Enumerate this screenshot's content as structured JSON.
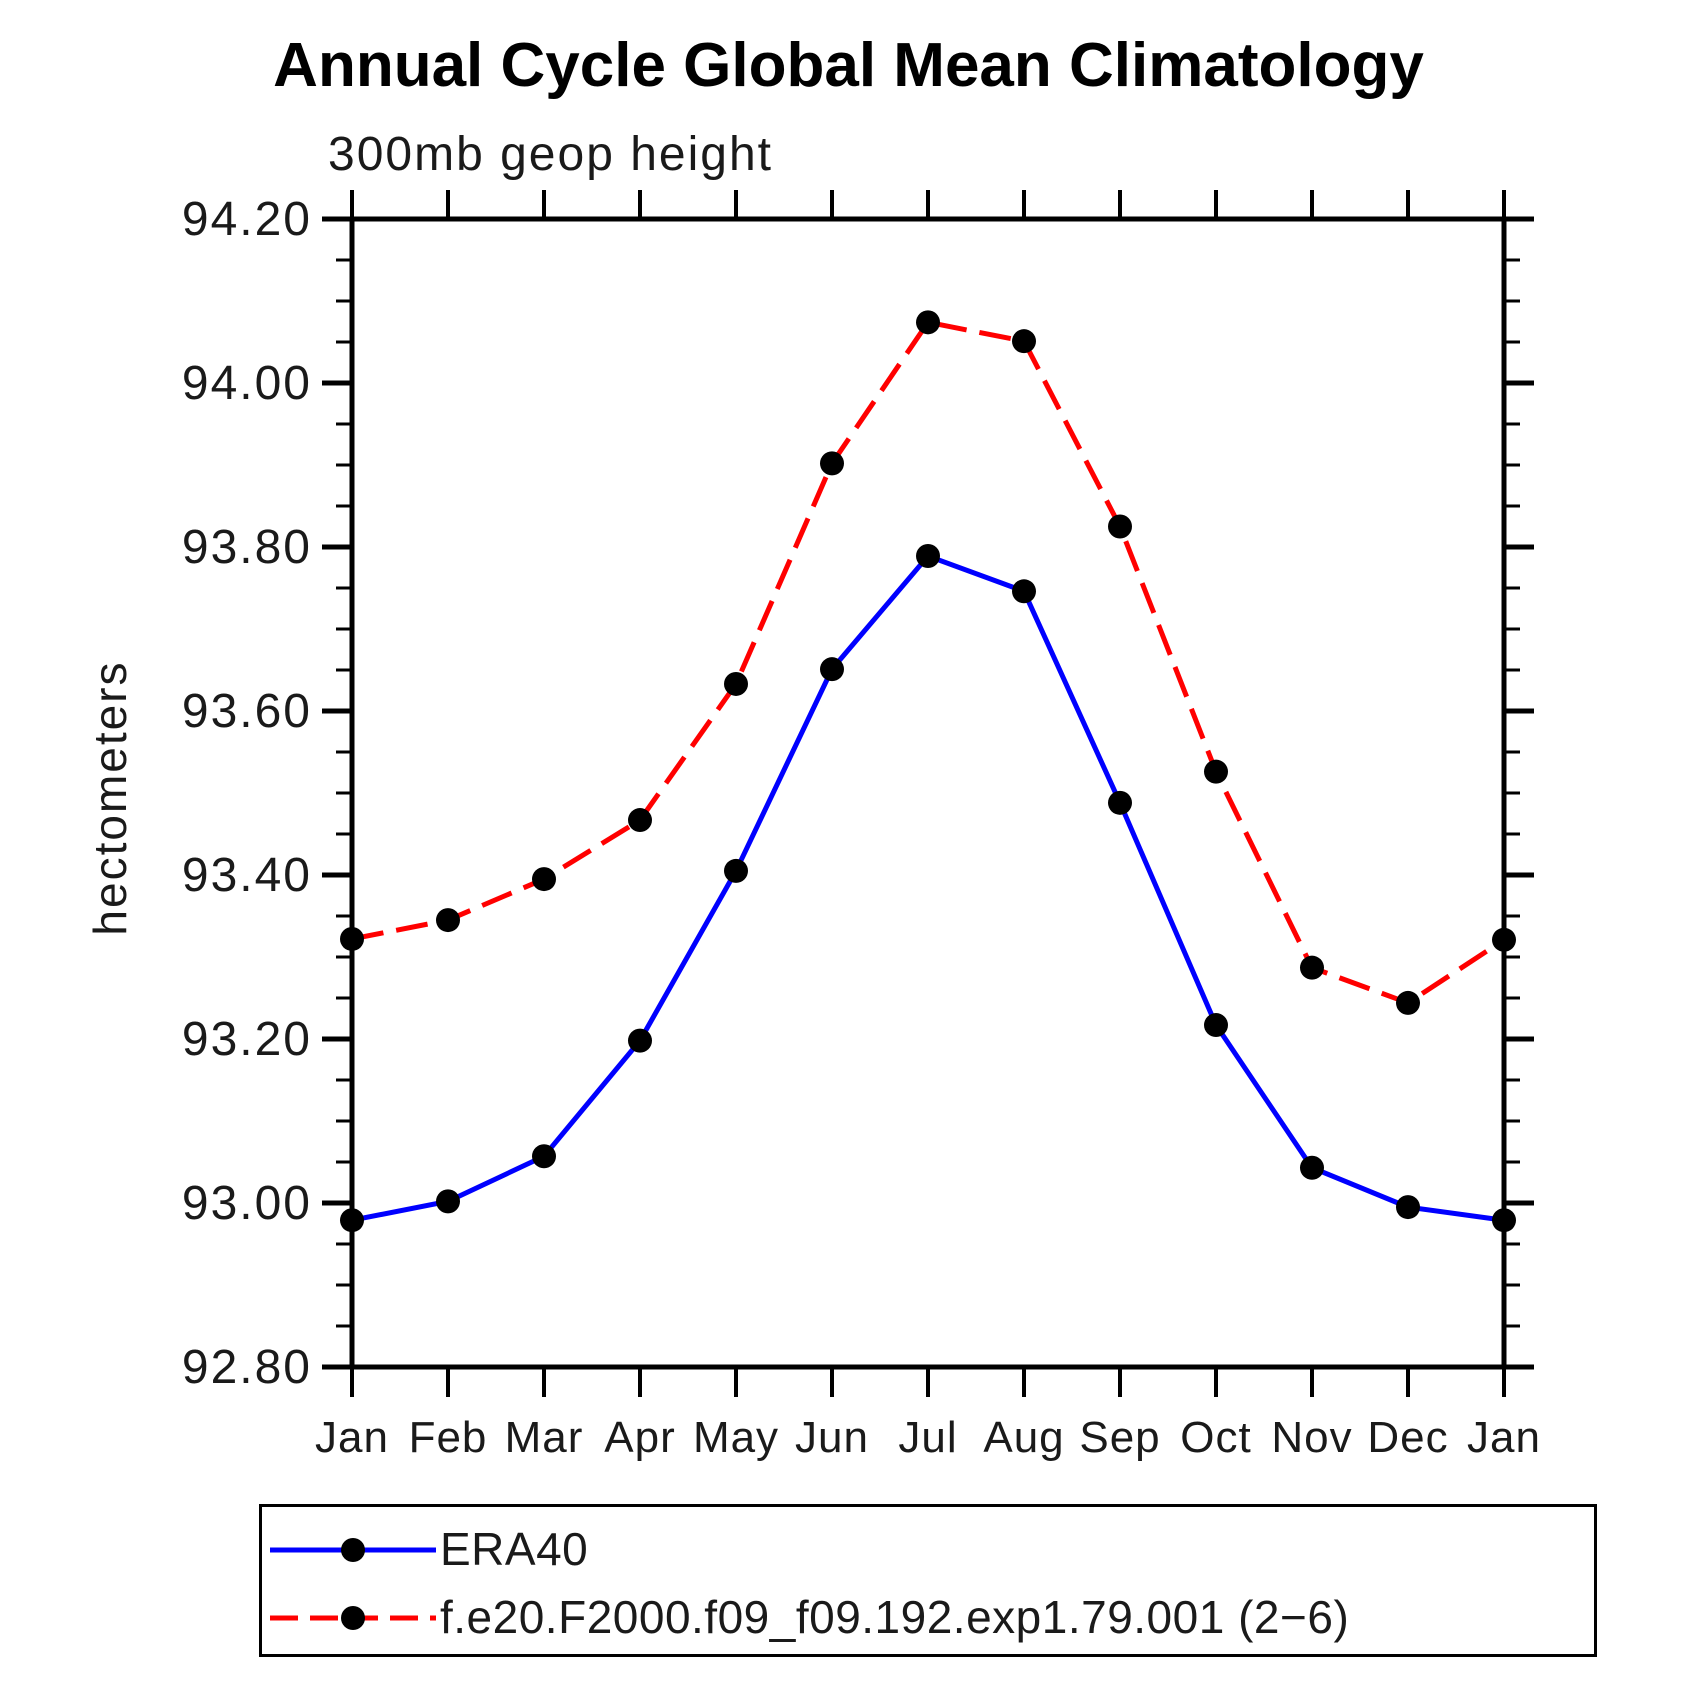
{
  "title": "Annual Cycle Global Mean Climatology",
  "subtitle": "300mb geop height",
  "ylabel": "hectometers",
  "chart_data": {
    "type": "line",
    "categories": [
      "Jan",
      "Feb",
      "Mar",
      "Apr",
      "May",
      "Jun",
      "Jul",
      "Aug",
      "Sep",
      "Oct",
      "Nov",
      "Dec",
      "Jan"
    ],
    "series": [
      {
        "name": "ERA40",
        "color": "#0000ff",
        "line_style": "solid",
        "marker": "filled-circle",
        "values": [
          92.979,
          93.002,
          93.057,
          93.198,
          93.405,
          93.651,
          93.789,
          93.746,
          93.488,
          93.217,
          93.043,
          92.995,
          92.979
        ]
      },
      {
        "name": "f.e20.F2000.f09_f09.192.exp1.79.001 (2−6)",
        "color": "#ff0000",
        "line_style": "dashed",
        "marker": "filled-circle",
        "values": [
          93.322,
          93.345,
          93.395,
          93.467,
          93.633,
          93.902,
          94.074,
          94.051,
          93.825,
          93.526,
          93.287,
          93.244,
          93.321
        ]
      }
    ],
    "marker_color": "#000000",
    "axis_color": "#000000",
    "ylim": [
      92.8,
      94.2
    ],
    "ytick_step": 0.2,
    "yminor_step": 0.05,
    "ytick_labels": [
      "92.80",
      "93.00",
      "93.20",
      "93.40",
      "93.60",
      "93.80",
      "94.00",
      "94.20"
    ],
    "grid": false,
    "legend_position": "bottom-left-box"
  }
}
